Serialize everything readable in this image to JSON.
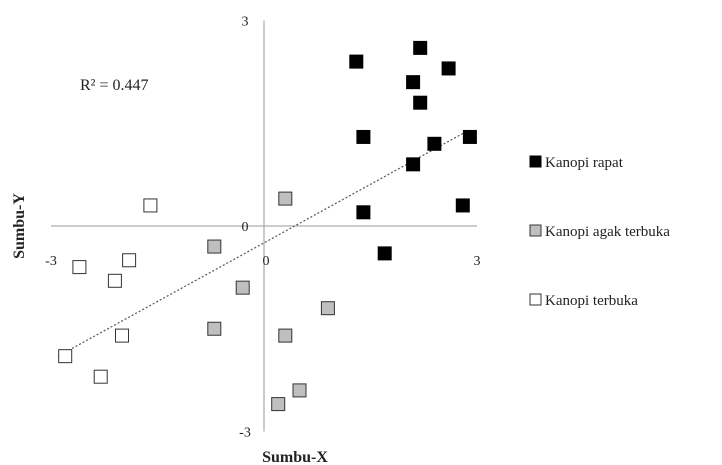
{
  "chart_data": {
    "type": "scatter",
    "xlabel": "Sumbu-X",
    "ylabel": "Sumbu-Y",
    "xlim": [
      -3,
      3
    ],
    "ylim": [
      -3,
      3
    ],
    "x_ticks": [
      {
        "value": -3,
        "label": "-3"
      },
      {
        "value": 3,
        "label": "3"
      }
    ],
    "y_ticks": [
      {
        "value": 3,
        "label": "3"
      },
      {
        "value": 0,
        "label": "0"
      },
      {
        "value": -3,
        "label": "-3"
      }
    ],
    "origin_x_label": "0",
    "grid": false,
    "legend_position": "right",
    "annotation": "R² = 0.447",
    "trendline": {
      "style": "dotted",
      "color": "#555555",
      "x": [
        -2.9,
        2.8
      ],
      "y": [
        -1.9,
        1.35
      ]
    },
    "series": [
      {
        "name": "Kanopi rapat",
        "fill": "#000000",
        "stroke": "#000000",
        "points": [
          {
            "x": 1.3,
            "y": 2.4
          },
          {
            "x": 2.2,
            "y": 2.6
          },
          {
            "x": 2.6,
            "y": 2.3
          },
          {
            "x": 2.1,
            "y": 2.1
          },
          {
            "x": 2.2,
            "y": 1.8
          },
          {
            "x": 1.4,
            "y": 1.3
          },
          {
            "x": 2.4,
            "y": 1.2
          },
          {
            "x": 2.9,
            "y": 1.3
          },
          {
            "x": 2.1,
            "y": 0.9
          },
          {
            "x": 1.4,
            "y": 0.2
          },
          {
            "x": 2.8,
            "y": 0.3
          },
          {
            "x": 1.7,
            "y": -0.4
          }
        ]
      },
      {
        "name": "Kanopi agak terbuka",
        "fill": "#bfbfbf",
        "stroke": "#333333",
        "points": [
          {
            "x": 0.3,
            "y": 0.4
          },
          {
            "x": -0.7,
            "y": -0.3
          },
          {
            "x": -0.3,
            "y": -0.9
          },
          {
            "x": -0.7,
            "y": -1.5
          },
          {
            "x": 0.3,
            "y": -1.6
          },
          {
            "x": 0.9,
            "y": -1.2
          },
          {
            "x": 0.5,
            "y": -2.4
          },
          {
            "x": 0.2,
            "y": -2.6
          }
        ]
      },
      {
        "name": "Kanopi terbuka",
        "fill": "#ffffff",
        "stroke": "#333333",
        "points": [
          {
            "x": -1.6,
            "y": 0.3
          },
          {
            "x": -2.6,
            "y": -0.6
          },
          {
            "x": -1.9,
            "y": -0.5
          },
          {
            "x": -2.1,
            "y": -0.8
          },
          {
            "x": -2.0,
            "y": -1.6
          },
          {
            "x": -2.8,
            "y": -1.9
          },
          {
            "x": -2.3,
            "y": -2.2
          }
        ]
      }
    ]
  }
}
